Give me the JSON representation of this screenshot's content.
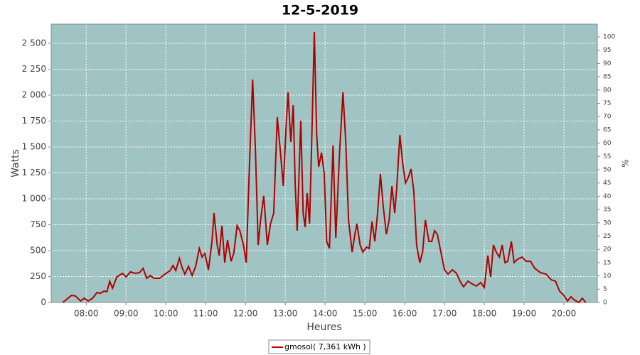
{
  "chart_data": {
    "type": "line",
    "title": "12-5-2019",
    "xlabel": "Heures",
    "ylabel": "Watts",
    "y2label": "%",
    "x": [
      7.41,
      7.63,
      7.73,
      7.86,
      7.95,
      8.05,
      8.16,
      8.27,
      8.36,
      8.45,
      8.52,
      8.59,
      8.66,
      8.77,
      8.91,
      9.0,
      9.11,
      9.23,
      9.34,
      9.43,
      9.52,
      9.61,
      9.7,
      9.84,
      9.98,
      10.11,
      10.18,
      10.25,
      10.34,
      10.41,
      10.48,
      10.57,
      10.66,
      10.75,
      10.84,
      10.91,
      10.98,
      11.07,
      11.16,
      11.21,
      11.29,
      11.34,
      11.41,
      11.48,
      11.55,
      11.64,
      11.71,
      11.79,
      11.86,
      11.95,
      12.02,
      12.09,
      12.18,
      12.25,
      12.32,
      12.38,
      12.46,
      12.55,
      12.63,
      12.71,
      12.8,
      12.88,
      12.95,
      13.02,
      13.07,
      13.14,
      13.2,
      13.25,
      13.3,
      13.39,
      13.45,
      13.5,
      13.55,
      13.61,
      13.66,
      13.73,
      13.79,
      13.84,
      13.91,
      13.98,
      14.04,
      14.11,
      14.2,
      14.27,
      14.36,
      14.45,
      14.52,
      14.59,
      14.68,
      14.75,
      14.8,
      14.88,
      14.95,
      15.04,
      15.11,
      15.18,
      15.25,
      15.32,
      15.39,
      15.46,
      15.54,
      15.61,
      15.68,
      15.75,
      15.8,
      15.88,
      15.95,
      16.02,
      16.09,
      16.16,
      16.23,
      16.3,
      16.38,
      16.45,
      16.52,
      16.61,
      16.68,
      16.75,
      16.82,
      16.91,
      17.0,
      17.09,
      17.2,
      17.3,
      17.41,
      17.48,
      17.59,
      17.7,
      17.8,
      17.91,
      18.0,
      18.09,
      18.16,
      18.23,
      18.3,
      18.38,
      18.45,
      18.52,
      18.59,
      18.68,
      18.75,
      18.84,
      18.95,
      19.05,
      19.16,
      19.27,
      19.41,
      19.55,
      19.68,
      19.79,
      19.89,
      20.0,
      20.09,
      20.18,
      20.27,
      20.38,
      20.46,
      20.55
    ],
    "series": [
      {
        "name": "gmosol( 7,361 kWh )",
        "color": "#b00000",
        "values": [
          0,
          68,
          62,
          14,
          41,
          14,
          41,
          96,
          89,
          110,
          103,
          205,
          137,
          247,
          281,
          247,
          295,
          281,
          288,
          329,
          233,
          260,
          233,
          233,
          274,
          308,
          356,
          308,
          425,
          336,
          274,
          349,
          260,
          349,
          521,
          438,
          473,
          315,
          589,
          863,
          555,
          452,
          740,
          384,
          603,
          397,
          480,
          740,
          692,
          555,
          384,
          1206,
          2151,
          1480,
          555,
          795,
          1028,
          555,
          760,
          863,
          1788,
          1445,
          1123,
          1685,
          2028,
          1548,
          1904,
          1137,
          692,
          1754,
          863,
          726,
          1055,
          760,
          1480,
          2610,
          1617,
          1308,
          1445,
          1240,
          589,
          521,
          1514,
          623,
          1411,
          2028,
          1548,
          795,
          486,
          658,
          760,
          555,
          486,
          534,
          521,
          781,
          589,
          863,
          1240,
          932,
          658,
          795,
          1123,
          863,
          1103,
          1617,
          1343,
          1151,
          1206,
          1288,
          1069,
          555,
          384,
          486,
          795,
          589,
          589,
          692,
          658,
          486,
          315,
          274,
          315,
          281,
          192,
          151,
          205,
          178,
          158,
          192,
          144,
          452,
          247,
          555,
          486,
          438,
          555,
          384,
          397,
          589,
          384,
          418,
          438,
          397,
          397,
          329,
          288,
          274,
          219,
          205,
          110,
          68,
          14,
          55,
          21,
          0,
          41,
          0
        ]
      }
    ],
    "xlim": [
      7.12,
      20.84
    ],
    "xticks": [
      {
        "value": 8,
        "label": "08:00"
      },
      {
        "value": 9,
        "label": "09:00"
      },
      {
        "value": 10,
        "label": "10:00"
      },
      {
        "value": 11,
        "label": "11:00"
      },
      {
        "value": 12,
        "label": "12:00"
      },
      {
        "value": 13,
        "label": "13:00"
      },
      {
        "value": 14,
        "label": "14:00"
      },
      {
        "value": 15,
        "label": "15:00"
      },
      {
        "value": 16,
        "label": "16:00"
      },
      {
        "value": 17,
        "label": "17:00"
      },
      {
        "value": 18,
        "label": "18:00"
      },
      {
        "value": 19,
        "label": "19:00"
      },
      {
        "value": 20,
        "label": "20:00"
      }
    ],
    "ylim": [
      0,
      2685
    ],
    "yticks": [
      0,
      250,
      500,
      750,
      {
        "value": 1000,
        "label": "1 000"
      },
      {
        "value": 1250,
        "label": "1 250"
      },
      {
        "value": 1500,
        "label": "1 500"
      },
      {
        "value": 1750,
        "label": "1 750"
      },
      {
        "value": 2000,
        "label": "2 000"
      },
      {
        "value": 2250,
        "label": "2 250"
      },
      {
        "value": 2500,
        "label": "2 500"
      }
    ],
    "y2lim": [
      0,
      104.8
    ],
    "y2ticks": [
      0,
      5,
      10,
      15,
      20,
      25,
      30,
      35,
      40,
      45,
      50,
      55,
      60,
      65,
      70,
      75,
      80,
      85,
      90,
      95,
      100
    ],
    "grid": true,
    "legend": "bottom",
    "background": "#a0c4c4"
  }
}
